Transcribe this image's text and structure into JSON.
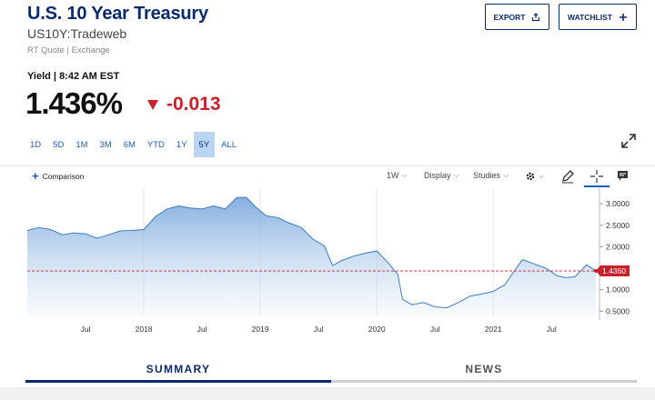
{
  "header": {
    "title": "U.S. 10 Year Treasury",
    "symbol": "US10Y:Tradeweb",
    "source": "RT Quote | Exchange",
    "export_label": "EXPORT",
    "watchlist_label": "WATCHLIST"
  },
  "quote": {
    "yield_label": "Yield | 8:42 AM EST",
    "price": "1.436%",
    "change": "-0.013",
    "change_color": "#c8212b"
  },
  "ranges": [
    {
      "label": "1D",
      "active": false
    },
    {
      "label": "5D",
      "active": false
    },
    {
      "label": "1M",
      "active": false
    },
    {
      "label": "3M",
      "active": false
    },
    {
      "label": "6M",
      "active": false
    },
    {
      "label": "YTD",
      "active": false
    },
    {
      "label": "1Y",
      "active": false
    },
    {
      "label": "5Y",
      "active": true
    },
    {
      "label": "ALL",
      "active": false
    }
  ],
  "toolbar": {
    "comparison_label": "Comparison",
    "interval_label": "1W",
    "display_label": "Display",
    "studies_label": "Studies"
  },
  "icons": {
    "export": "share-icon",
    "watchlist": "plus-icon",
    "expand": "expand-icon",
    "settings": "gear-icon",
    "draw": "pencil-icon",
    "crosshair": "crosshair-icon",
    "annotation": "flag-icon"
  },
  "chart_data": {
    "type": "area",
    "x_ticks": [
      "Jul",
      "2018",
      "Jul",
      "2019",
      "Jul",
      "2020",
      "Jul",
      "2021",
      "Jul"
    ],
    "y_ticks": [
      "3.0000",
      "2.5000",
      "2.0000",
      "1.5000",
      "1.0000",
      "0.5000"
    ],
    "ylim": [
      0.4,
      3.3
    ],
    "last_value_label": "1.4360",
    "last_value": 1.436,
    "line_color": "#3a7cc4",
    "marker_color": "#c8212b",
    "vertical_grid": true,
    "series": [
      {
        "x": [
          2017.0,
          2017.1,
          2017.2,
          2017.3,
          2017.4,
          2017.5,
          2017.6,
          2017.7,
          2017.8,
          2017.9,
          2018.0,
          2018.1,
          2018.2,
          2018.3,
          2018.4,
          2018.5,
          2018.6,
          2018.7,
          2018.8,
          2018.88,
          2018.95,
          2019.05,
          2019.15,
          2019.25,
          2019.35,
          2019.45,
          2019.55,
          2019.62,
          2019.7,
          2019.8,
          2019.9,
          2020.0,
          2020.1,
          2020.18,
          2020.22,
          2020.3,
          2020.4,
          2020.5,
          2020.6,
          2020.7,
          2020.8,
          2020.9,
          2021.0,
          2021.1,
          2021.17,
          2021.25,
          2021.35,
          2021.45,
          2021.55,
          2021.62,
          2021.7,
          2021.8,
          2021.88
        ],
        "values": [
          2.38,
          2.45,
          2.4,
          2.28,
          2.32,
          2.3,
          2.2,
          2.28,
          2.37,
          2.38,
          2.4,
          2.7,
          2.88,
          2.95,
          2.9,
          2.88,
          2.95,
          2.88,
          3.15,
          3.15,
          2.95,
          2.72,
          2.68,
          2.55,
          2.45,
          2.18,
          2.02,
          1.56,
          1.68,
          1.78,
          1.85,
          1.9,
          1.62,
          1.35,
          0.78,
          0.65,
          0.7,
          0.6,
          0.58,
          0.7,
          0.85,
          0.9,
          0.96,
          1.12,
          1.4,
          1.7,
          1.6,
          1.5,
          1.32,
          1.28,
          1.3,
          1.58,
          1.436
        ]
      }
    ]
  },
  "tabs": [
    {
      "label": "SUMMARY",
      "active": true
    },
    {
      "label": "NEWS",
      "active": false
    }
  ]
}
